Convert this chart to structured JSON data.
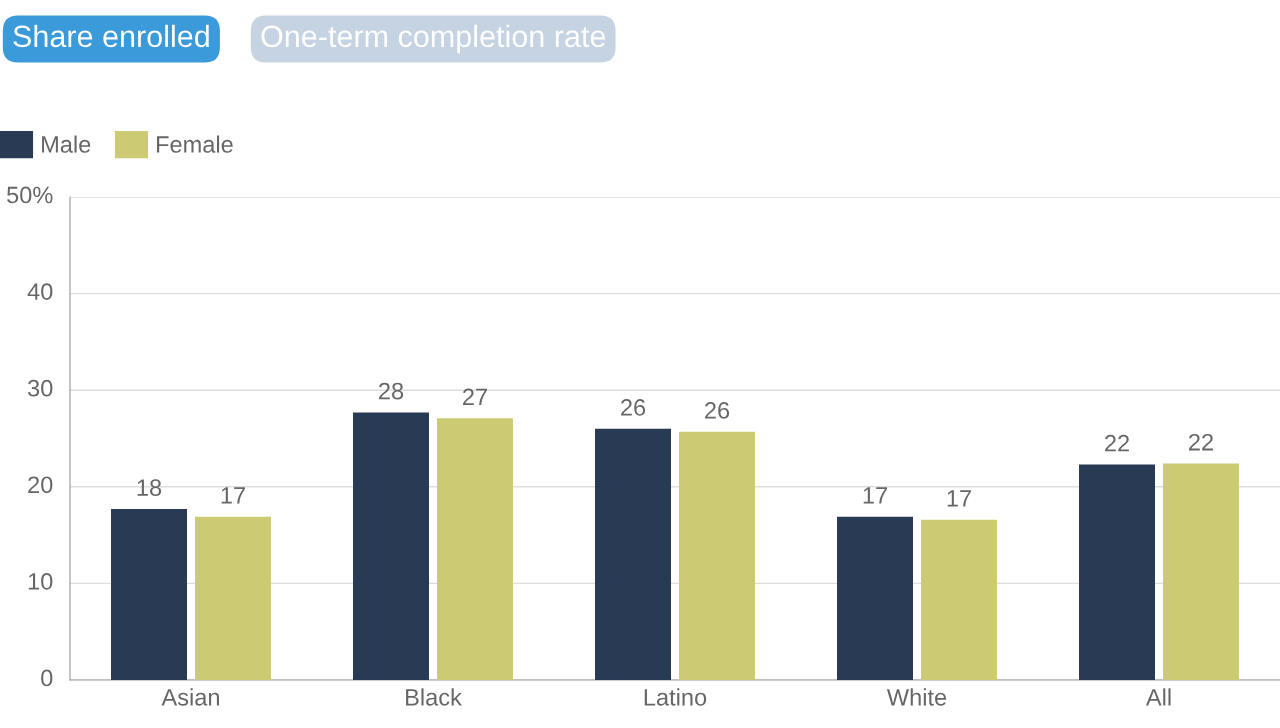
{
  "chart_data": {
    "type": "bar",
    "annotations": [
      "Share enrolled",
      "One-term completion rate"
    ],
    "categories": [
      "Asian",
      "Black",
      "Latino",
      "White",
      "All"
    ],
    "series": [
      {
        "name": "Male",
        "color": "#283a54",
        "values": [
          17.7,
          27.7,
          26.0,
          16.9,
          22.3
        ],
        "value_labels": [
          "18",
          "28",
          "26",
          "17",
          "22"
        ]
      },
      {
        "name": "Female",
        "color": "#cdca74",
        "values": [
          16.9,
          27.1,
          25.7,
          16.6,
          22.4
        ],
        "value_labels": [
          "17",
          "27",
          "26",
          "17",
          "22"
        ]
      }
    ],
    "ylim": [
      0,
      50
    ],
    "yticks": [
      0,
      10,
      20,
      30,
      40,
      {
        "value": 50,
        "label": "50%"
      }
    ],
    "grid": "y",
    "legend": "top left"
  }
}
